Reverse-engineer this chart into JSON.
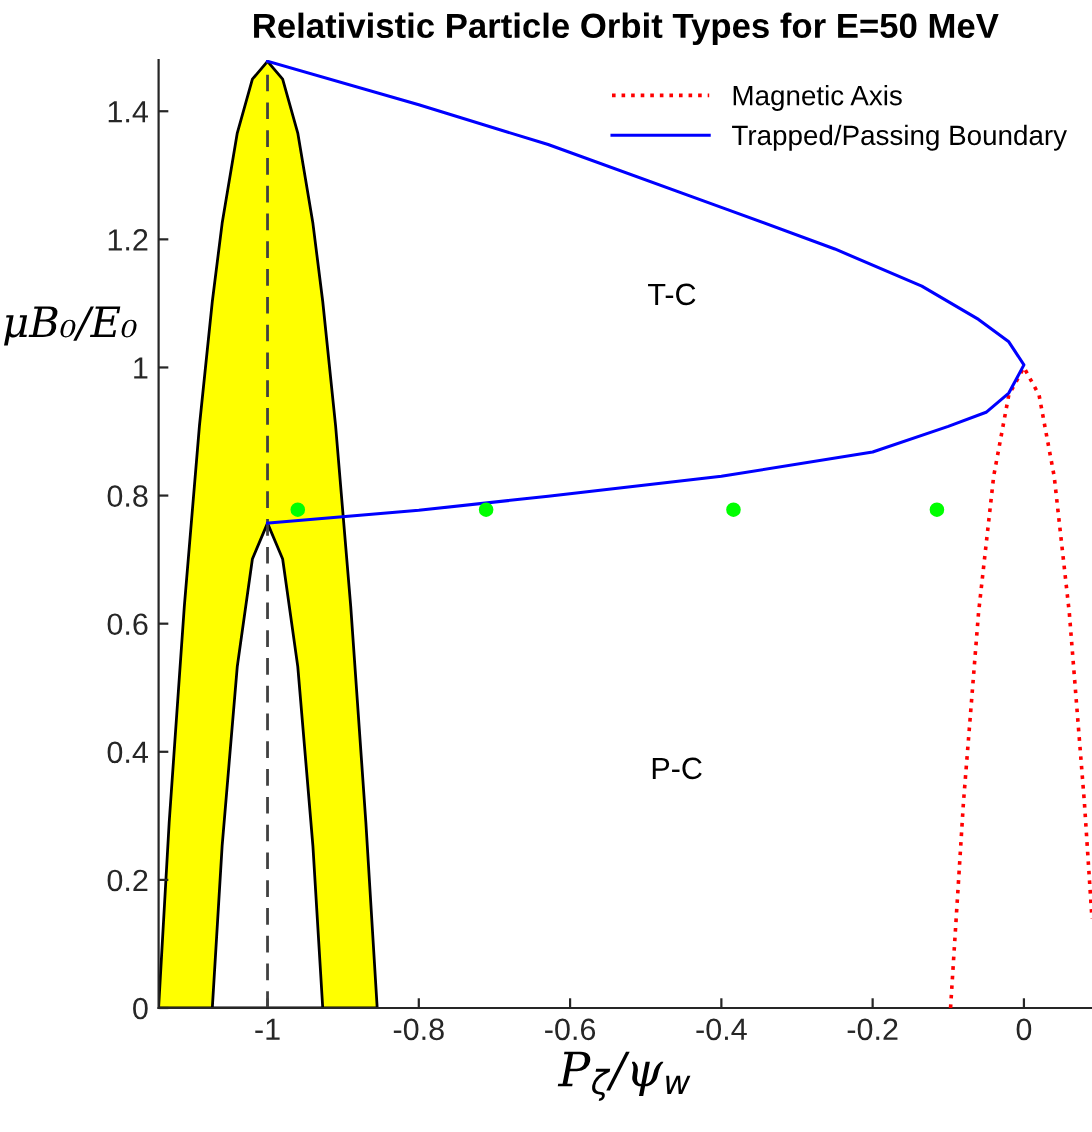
{
  "chart_data": {
    "type": "line",
    "title": "Relativistic Particle Orbit Types for E=50 MeV",
    "xlabel": "P$_{ζ}$/ψ$_{w}$",
    "ylabel": "μB₀/E₀",
    "xlim": [
      -1.144,
      0.09
    ],
    "ylim": [
      0,
      1.48
    ],
    "xticks": [
      -1,
      -0.8,
      -0.6,
      -0.4,
      -0.2,
      0
    ],
    "yticks": [
      0,
      0.2,
      0.4,
      0.6,
      0.8,
      1,
      1.2,
      1.4
    ],
    "grid": false,
    "legend": "top right",
    "series": [
      {
        "type": "area",
        "color": "#ffff00",
        "x": [
          -1.144,
          -1.13,
          -1.11,
          -1.09,
          -1.073,
          -1.06,
          -1.04,
          -1.02,
          -1,
          -0.98,
          -0.96,
          -0.94,
          -0.927,
          -0.91,
          -0.89,
          -0.87,
          -0.855
        ],
        "values": [
          0,
          0.29,
          0.627,
          0.909,
          1.103,
          1.225,
          1.366,
          1.45,
          1.478,
          1.45,
          1.366,
          1.225,
          1.103,
          0.909,
          0.627,
          0.29,
          0
        ]
      },
      {
        "type": "area",
        "color": "#ffffff",
        "x": [
          -1.073,
          -1.06,
          -1.04,
          -1.02,
          -1,
          -0.98,
          -0.96,
          -0.94,
          -0.927
        ],
        "values": [
          0,
          0.253,
          0.533,
          0.701,
          0.757,
          0.701,
          0.533,
          0.253,
          0
        ]
      },
      {
        "name": "Magnetic Axis",
        "color": "#ff0000",
        "line_style": "dotted",
        "x": [
          -0.097,
          -0.08,
          -0.06,
          -0.04,
          -0.02,
          0,
          0.02,
          0.04,
          0.06,
          0.08,
          0.09
        ],
        "values": [
          0,
          0.32,
          0.617,
          0.83,
          0.957,
          1.0,
          0.957,
          0.83,
          0.617,
          0.32,
          0.139
        ]
      },
      {
        "name": "Trapped/Passing Boundary",
        "color": "#0000ff",
        "line_style": "solid",
        "x": [
          -1,
          -0.8,
          -0.629,
          -0.4,
          -0.25,
          -0.135,
          -0.06,
          -0.02,
          0,
          -0.02,
          -0.05,
          -0.1,
          -0.2,
          -0.4,
          -0.629,
          -0.8,
          -1
        ],
        "values": [
          1.478,
          1.41,
          1.348,
          1.25,
          1.185,
          1.127,
          1.075,
          1.04,
          1.004,
          0.96,
          0.93,
          0.908,
          0.868,
          0.83,
          0.799,
          0.777,
          0.757
        ]
      },
      {
        "type": "scatter",
        "color": "#00ff00",
        "marker": "circle",
        "x": [
          -0.96,
          -0.711,
          -0.384,
          -0.115
        ],
        "values": [
          0.778,
          0.778,
          0.778,
          0.778
        ]
      }
    ],
    "ref_lines": [
      {
        "axis": "x",
        "value": -1,
        "color": "#404040",
        "line_style": "dashed"
      }
    ],
    "annotations": [
      "T-C",
      "P-C"
    ]
  }
}
